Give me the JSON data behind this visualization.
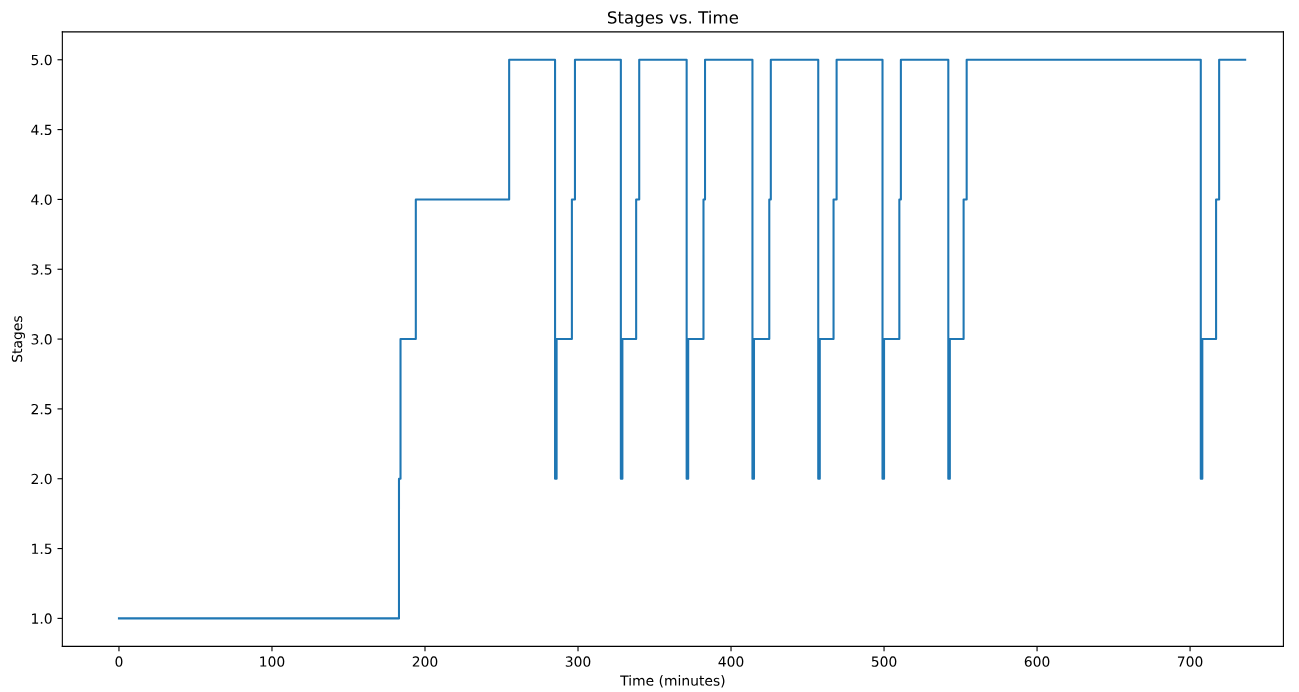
{
  "chart_data": {
    "type": "step",
    "title": "Stages vs. Time",
    "xlabel": "Time (minutes)",
    "ylabel": "Stages",
    "x": [
      0,
      183,
      184,
      194,
      255,
      285,
      286,
      296,
      298,
      328,
      329,
      338,
      340,
      371,
      372,
      382,
      383,
      414,
      415,
      425,
      426,
      457,
      458,
      467,
      469,
      499,
      500,
      510,
      511,
      542,
      543,
      552,
      554,
      707,
      708,
      717,
      719,
      736
    ],
    "series": [
      {
        "color": "#1f77b4",
        "values": [
          1,
          2,
          3,
          4,
          5,
          2,
          3,
          4,
          5,
          2,
          3,
          4,
          5,
          2,
          3,
          4,
          5,
          2,
          3,
          4,
          5,
          2,
          3,
          4,
          5,
          2,
          3,
          4,
          5,
          2,
          3,
          4,
          5,
          2,
          3,
          4,
          5,
          5
        ]
      }
    ],
    "xlim": [
      -37,
      761
    ],
    "ylim": [
      0.8,
      5.2
    ],
    "xticks": [
      0,
      100,
      200,
      300,
      400,
      500,
      600,
      700
    ],
    "yticks": [
      {
        "value": 1,
        "label": "1.0"
      },
      {
        "value": 1.5,
        "label": "1.5"
      },
      {
        "value": 2,
        "label": "2.0"
      },
      {
        "value": 2.5,
        "label": "2.5"
      },
      {
        "value": 3,
        "label": "3.0"
      },
      {
        "value": 3.5,
        "label": "3.5"
      },
      {
        "value": 4,
        "label": "4.0"
      },
      {
        "value": 4.5,
        "label": "4.5"
      },
      {
        "value": 5,
        "label": "5.0"
      }
    ],
    "grid": false,
    "legend": false
  }
}
